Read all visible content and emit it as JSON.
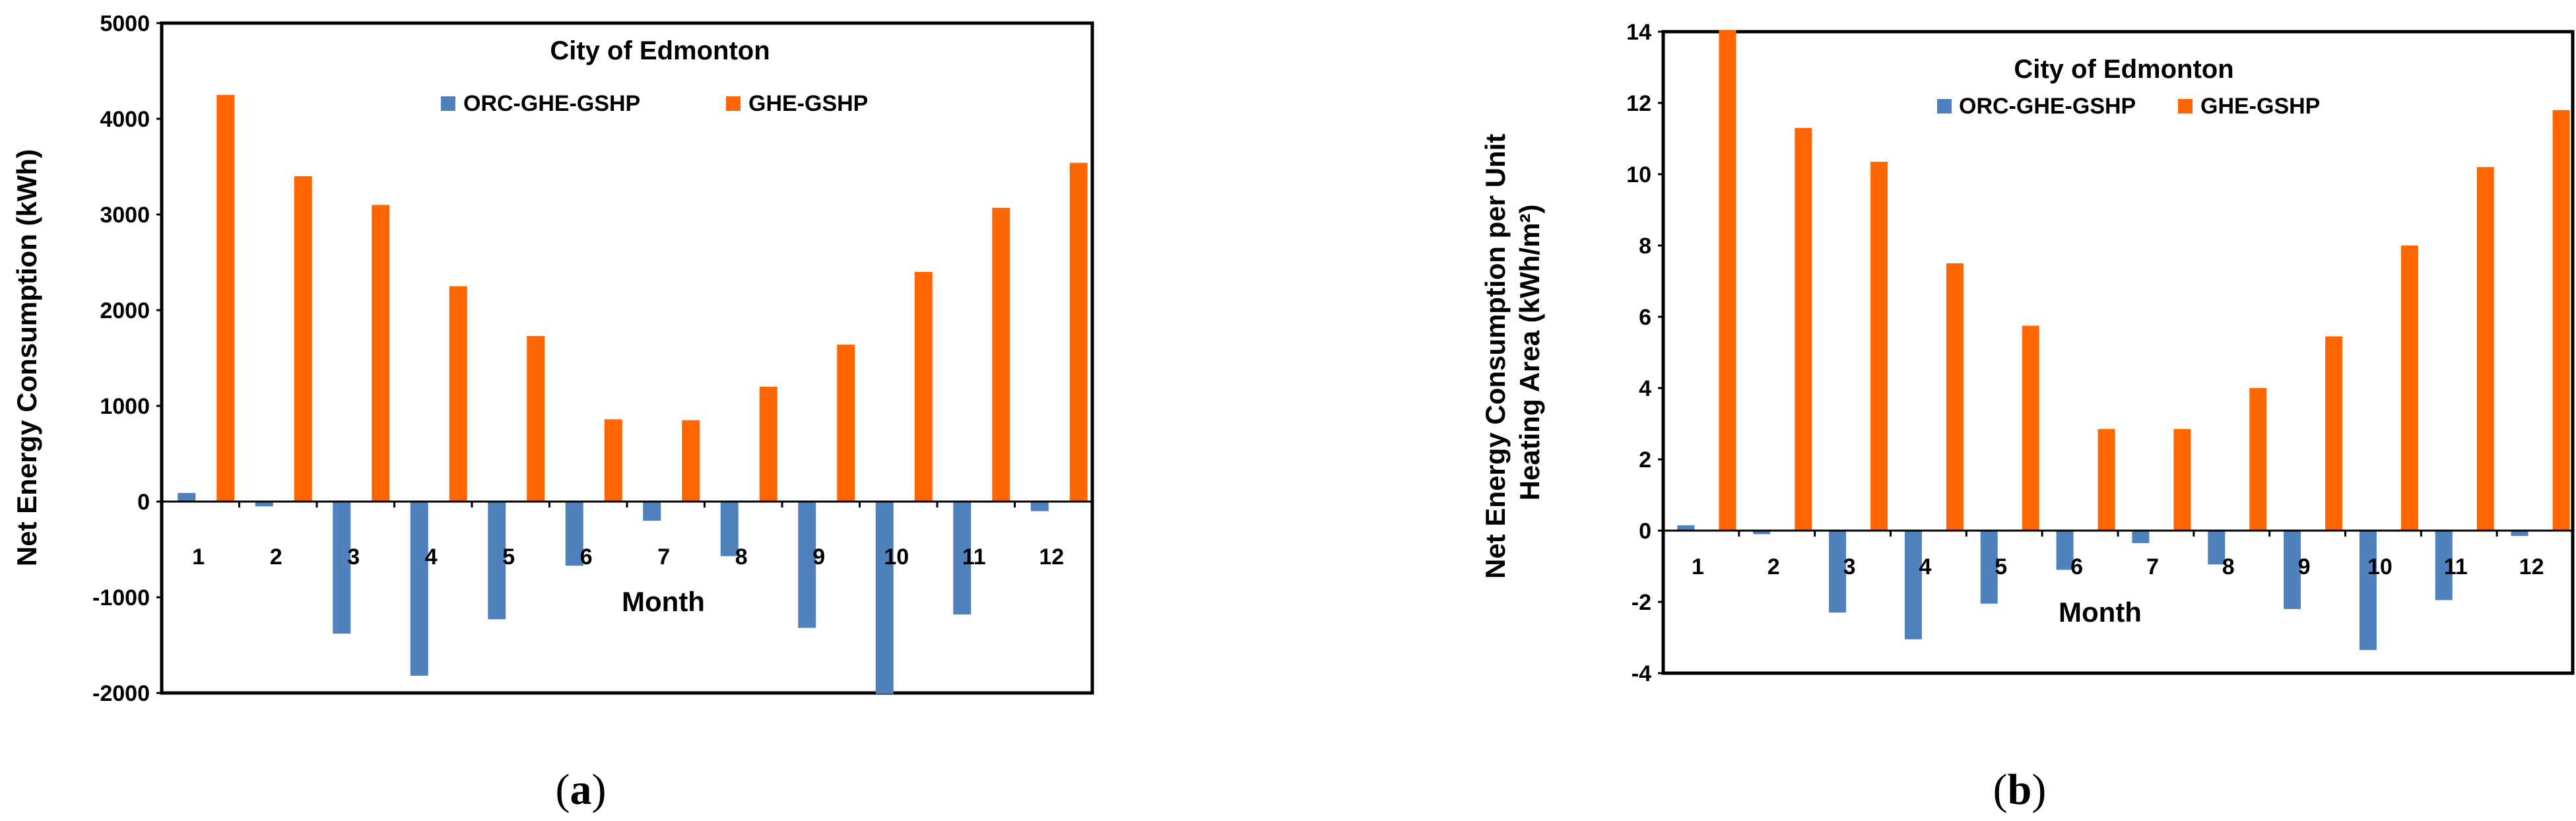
{
  "colors": {
    "series_a": "#4f81bd",
    "series_b": "#ff6600",
    "frame": "#000000",
    "background": "#ffffff"
  },
  "chart_data": [
    {
      "type": "bar",
      "panel": "a",
      "caption": {
        "open": "(",
        "letter": "a",
        "close": ")"
      },
      "title": "City of Edmonton",
      "xlabel": "Month",
      "ylabel": "Net Energy Consumption  (kWh)",
      "ylim": [
        -2000,
        5000
      ],
      "yticks": [
        -2000,
        -1000,
        0,
        1000,
        2000,
        3000,
        4000,
        5000
      ],
      "ytick_labels": [
        "-2000",
        "-1000",
        "0",
        "1000",
        "2000",
        "3000",
        "4000",
        "5000"
      ],
      "categories": [
        "1",
        "2",
        "3",
        "4",
        "5",
        "6",
        "7",
        "8",
        "9",
        "10",
        "11",
        "12"
      ],
      "legend_position": "top-center",
      "series": [
        {
          "name": "ORC-GHE-GSHP",
          "values": [
            90,
            -50,
            -1380,
            -1820,
            -1230,
            -670,
            -200,
            -570,
            -1320,
            -2010,
            -1180,
            -100
          ]
        },
        {
          "name": "GHE-GSHP",
          "values": [
            4250,
            3400,
            3100,
            2250,
            1730,
            860,
            850,
            1200,
            1640,
            2400,
            3070,
            3540
          ]
        }
      ]
    },
    {
      "type": "bar",
      "panel": "b",
      "caption": {
        "open": "(",
        "letter": "b",
        "close": ")"
      },
      "title": "City of Edmonton",
      "xlabel": "Month",
      "ylabel_lines": [
        "Net Energy Consumption per Unit",
        "Heating Area  (kWh/m²)"
      ],
      "ylim": [
        -4,
        14
      ],
      "yticks": [
        -4,
        -2,
        0,
        2,
        4,
        6,
        8,
        10,
        12,
        14
      ],
      "ytick_labels": [
        "-4",
        "-2",
        "0",
        "2",
        "4",
        "6",
        "8",
        "10",
        "12",
        "14"
      ],
      "categories": [
        "1",
        "2",
        "3",
        "4",
        "5",
        "6",
        "7",
        "8",
        "9",
        "10",
        "11",
        "12"
      ],
      "legend_position": "top-center",
      "series": [
        {
          "name": "ORC-GHE-GSHP",
          "values": [
            0.15,
            -0.1,
            -2.3,
            -3.05,
            -2.05,
            -1.1,
            -0.35,
            -0.95,
            -2.2,
            -3.35,
            -1.95,
            -0.15
          ]
        },
        {
          "name": "GHE-GSHP",
          "values": [
            14.05,
            11.3,
            10.35,
            7.5,
            5.75,
            2.85,
            2.85,
            4.0,
            5.45,
            8.0,
            10.2,
            11.8
          ]
        }
      ]
    }
  ]
}
